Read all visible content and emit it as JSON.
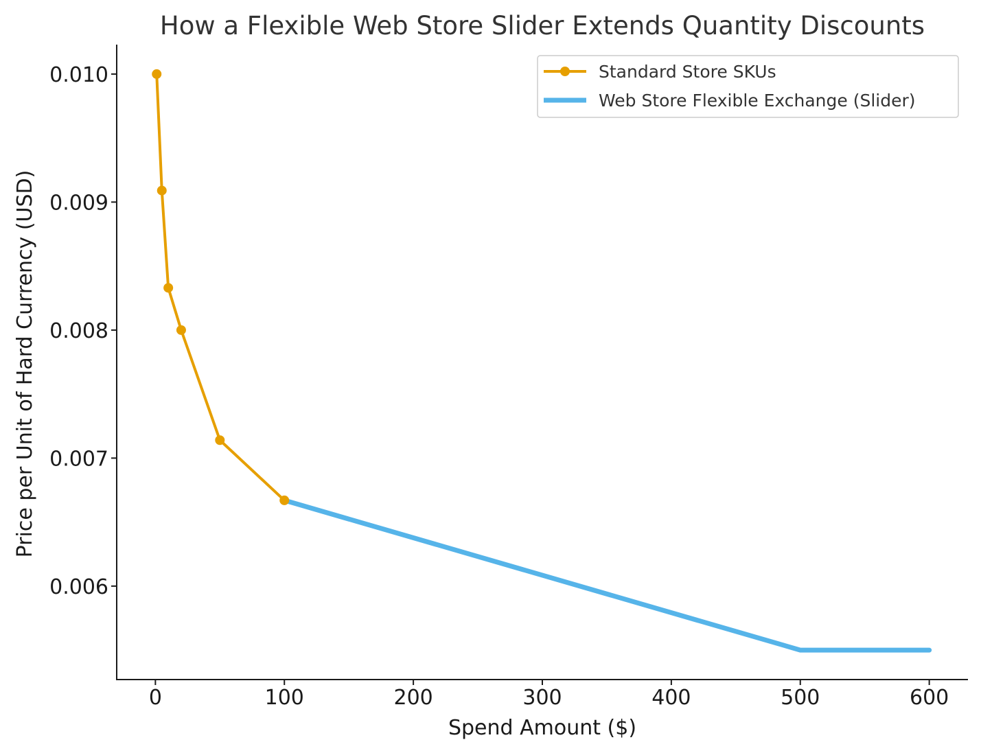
{
  "chart_data": {
    "type": "line",
    "title": "How a Flexible Web Store Slider Extends Quantity Discounts",
    "xlabel": "Spend Amount ($)",
    "ylabel": "Price per Unit of Hard Currency (USD)",
    "xlim": [
      -30,
      630
    ],
    "ylim": [
      0.00527,
      0.01023
    ],
    "xticks": [
      0,
      100,
      200,
      300,
      400,
      500,
      600
    ],
    "xtick_labels": [
      "0",
      "100",
      "200",
      "300",
      "400",
      "500",
      "600"
    ],
    "yticks": [
      0.006,
      0.007,
      0.008,
      0.009,
      0.01
    ],
    "ytick_labels": [
      "0.006",
      "0.007",
      "0.008",
      "0.009",
      "0.010"
    ],
    "grid": false,
    "legend": {
      "position": "top-right"
    },
    "series": [
      {
        "name": "Standard Store SKUs",
        "color": "#E69F00",
        "marker": "circle",
        "x": [
          1,
          5,
          10,
          20,
          50,
          100
        ],
        "y": [
          0.01,
          0.00909,
          0.00833,
          0.008,
          0.00714,
          0.00667
        ]
      },
      {
        "name": "Web Store Flexible Exchange (Slider)",
        "color": "#56B4E9",
        "marker": "none",
        "x": [
          100,
          500,
          505,
          600
        ],
        "y": [
          0.00667,
          0.0055,
          0.0055,
          0.0055
        ]
      }
    ]
  }
}
